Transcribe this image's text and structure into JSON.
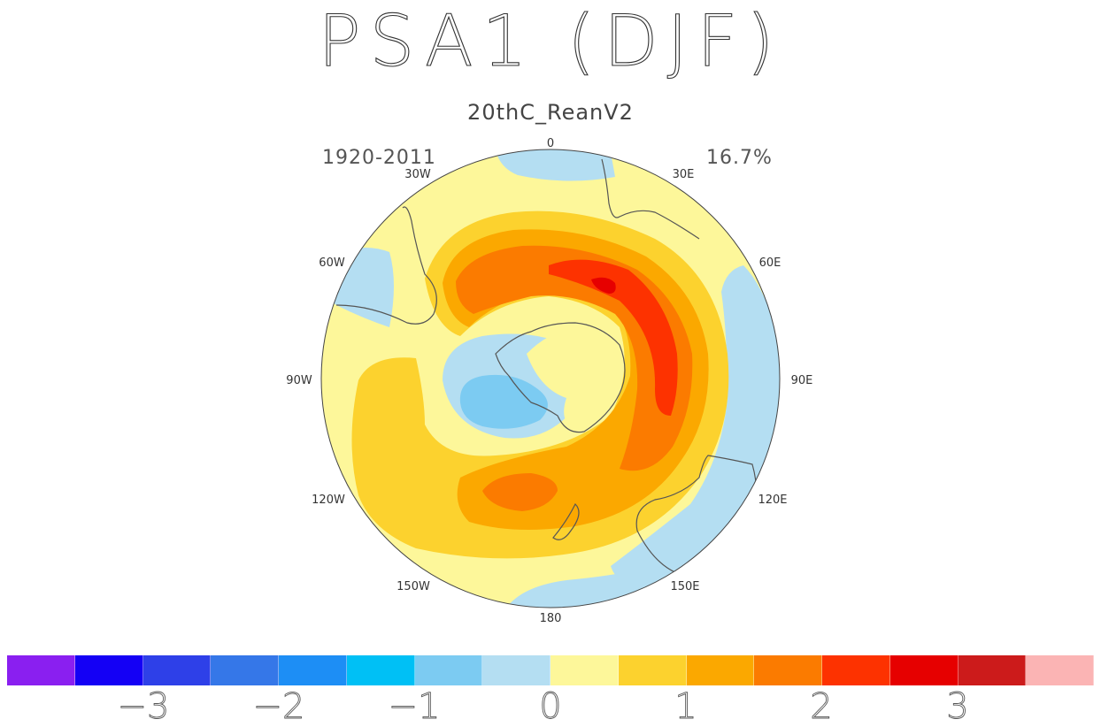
{
  "title": "PSA1  (DJF)",
  "subtitle": "20thC_ReanV2",
  "period": "1920-2011",
  "variance_pct": "16.7%",
  "lon_labels": [
    "0",
    "30E",
    "60E",
    "90E",
    "120E",
    "150E",
    "180",
    "150W",
    "120W",
    "90W",
    "60W",
    "30W"
  ],
  "colorbar": {
    "colors": [
      "#8a1ff0",
      "#1400f5",
      "#2e40e8",
      "#3577e8",
      "#1d8ef5",
      "#00c0f5",
      "#7ccbf2",
      "#b4def2",
      "#fdf79a",
      "#fcd22e",
      "#fba800",
      "#fb7b00",
      "#fd3200",
      "#e60000",
      "#cc1b1b",
      "#fbb4b4"
    ],
    "tick_labels": [
      "-3",
      "-2",
      "-1",
      "0",
      "1",
      "2",
      "3"
    ]
  }
}
